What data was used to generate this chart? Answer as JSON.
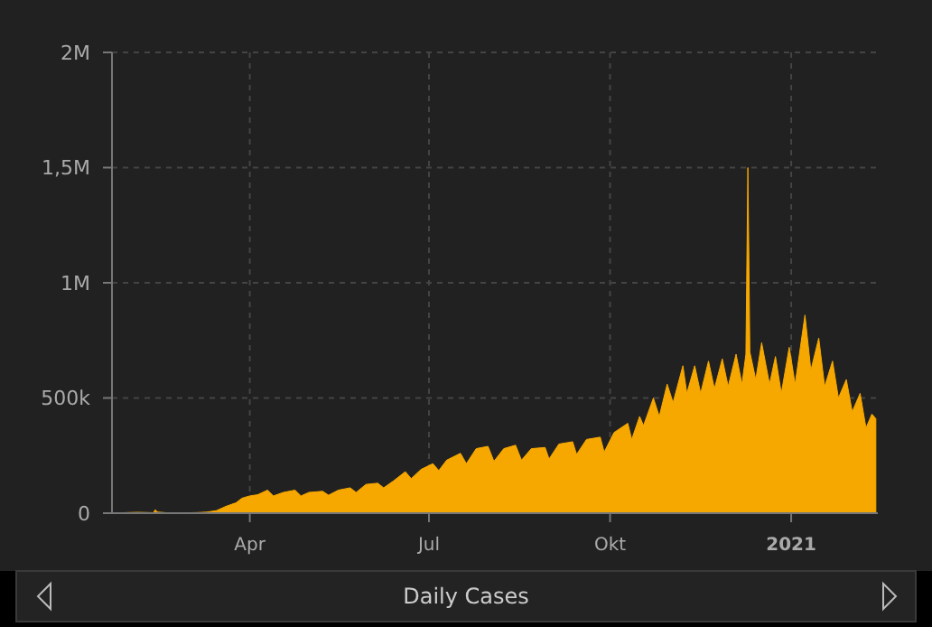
{
  "chart_data": {
    "type": "area",
    "title": "Daily Cases",
    "color": "#f7a800",
    "x": [
      "2020-01-22",
      "2020-01-28",
      "2020-02-04",
      "2020-02-12",
      "2020-02-13",
      "2020-02-14",
      "2020-02-20",
      "2020-02-28",
      "2020-03-05",
      "2020-03-10",
      "2020-03-15",
      "2020-03-20",
      "2020-03-25",
      "2020-03-28",
      "2020-04-01",
      "2020-04-05",
      "2020-04-10",
      "2020-04-13",
      "2020-04-18",
      "2020-04-24",
      "2020-04-27",
      "2020-05-01",
      "2020-05-08",
      "2020-05-11",
      "2020-05-16",
      "2020-05-22",
      "2020-05-25",
      "2020-05-30",
      "2020-06-05",
      "2020-06-08",
      "2020-06-13",
      "2020-06-19",
      "2020-06-22",
      "2020-06-27",
      "2020-07-03",
      "2020-07-06",
      "2020-07-10",
      "2020-07-17",
      "2020-07-20",
      "2020-07-25",
      "2020-07-31",
      "2020-08-03",
      "2020-08-08",
      "2020-08-14",
      "2020-08-17",
      "2020-08-22",
      "2020-08-29",
      "2020-08-31",
      "2020-09-05",
      "2020-09-12",
      "2020-09-14",
      "2020-09-19",
      "2020-09-26",
      "2020-09-28",
      "2020-10-03",
      "2020-10-10",
      "2020-10-12",
      "2020-10-16",
      "2020-10-18",
      "2020-10-23",
      "2020-10-26",
      "2020-10-30",
      "2020-11-02",
      "2020-11-07",
      "2020-11-09",
      "2020-11-13",
      "2020-11-16",
      "2020-11-20",
      "2020-11-23",
      "2020-11-27",
      "2020-11-30",
      "2020-12-04",
      "2020-12-07",
      "2020-12-09",
      "2020-12-10",
      "2020-12-11",
      "2020-12-14",
      "2020-12-17",
      "2020-12-21",
      "2020-12-24",
      "2020-12-27",
      "2020-12-31",
      "2021-01-03",
      "2021-01-08",
      "2021-01-11",
      "2021-01-15",
      "2021-01-18",
      "2021-01-22",
      "2021-01-25",
      "2021-01-29",
      "2021-02-01",
      "2021-02-05",
      "2021-02-08",
      "2021-02-11",
      "2021-02-13"
    ],
    "values": [
      600,
      2000,
      3800,
      2000,
      15000,
      5000,
      900,
      1500,
      2500,
      4500,
      11000,
      30000,
      45000,
      65000,
      75000,
      80000,
      100000,
      75000,
      90000,
      100000,
      75000,
      90000,
      95000,
      78000,
      100000,
      110000,
      90000,
      125000,
      130000,
      110000,
      140000,
      180000,
      150000,
      190000,
      215000,
      185000,
      230000,
      260000,
      215000,
      280000,
      290000,
      225000,
      280000,
      295000,
      230000,
      280000,
      285000,
      235000,
      300000,
      310000,
      255000,
      320000,
      330000,
      265000,
      350000,
      390000,
      320000,
      420000,
      380000,
      500000,
      420000,
      560000,
      480000,
      640000,
      520000,
      640000,
      520000,
      660000,
      540000,
      670000,
      550000,
      690000,
      560000,
      690000,
      1500000,
      700000,
      580000,
      740000,
      560000,
      680000,
      520000,
      720000,
      560000,
      860000,
      620000,
      760000,
      550000,
      660000,
      500000,
      580000,
      440000,
      520000,
      370000,
      430000,
      410000
    ],
    "xlim": [
      "2020-01-22",
      "2021-02-14"
    ],
    "xticks": [
      {
        "value": "2020-04-01",
        "label": "Apr"
      },
      {
        "value": "2020-07-01",
        "label": "Jul"
      },
      {
        "value": "2020-10-01",
        "label": "Okt"
      },
      {
        "value": "2021-01-01",
        "label": "2021"
      }
    ],
    "ylim": [
      0,
      2000000
    ],
    "yticks": [
      0,
      {
        "value": 500000,
        "label": "500k"
      },
      {
        "value": 1000000,
        "label": "1M"
      },
      {
        "value": 1500000,
        "label": "1,5M"
      },
      {
        "value": 2000000,
        "label": "2M"
      }
    ],
    "grid": true
  }
}
